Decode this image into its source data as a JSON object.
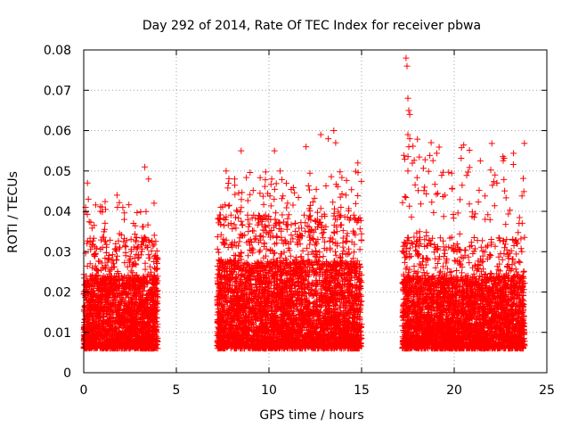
{
  "chart_data": {
    "type": "scatter",
    "title": "Day 292 of 2014, Rate Of TEC Index for receiver pbwa",
    "xlabel": "GPS time / hours",
    "ylabel": "ROTI / TECUs",
    "xlim": [
      0,
      25
    ],
    "ylim": [
      0,
      0.08
    ],
    "xticks": [
      0,
      5,
      10,
      15,
      20,
      25
    ],
    "yticks": [
      0,
      0.01,
      0.02,
      0.03,
      0.04,
      0.05,
      0.06,
      0.07,
      0.08
    ],
    "xtick_labels": [
      "0",
      "5",
      "10",
      "15",
      "20",
      "25"
    ],
    "ytick_labels": [
      "0",
      "0.01",
      "0.02",
      "0.03",
      "0.04",
      "0.05",
      "0.06",
      "0.07",
      "0.08"
    ],
    "grid": true,
    "marker": "+",
    "color": "#ff0000",
    "series": [
      {
        "name": "ROTI",
        "segments": [
          {
            "x_start": 0.0,
            "x_end": 4.0,
            "typical_range": [
              0.006,
              0.03
            ],
            "max": 0.051
          },
          {
            "x_start": 7.2,
            "x_end": 15.0,
            "typical_range": [
              0.006,
              0.035
            ],
            "max": 0.06
          },
          {
            "x_start": 17.2,
            "x_end": 23.8,
            "typical_range": [
              0.006,
              0.03
            ],
            "max": 0.078
          }
        ],
        "points": [
          [
            0.1,
            0.041
          ],
          [
            0.2,
            0.047
          ],
          [
            0.25,
            0.043
          ],
          [
            0.9,
            0.04
          ],
          [
            1.8,
            0.044
          ],
          [
            3.3,
            0.051
          ],
          [
            3.5,
            0.048
          ],
          [
            3.8,
            0.042
          ],
          [
            7.4,
            0.041
          ],
          [
            8.5,
            0.055
          ],
          [
            10.3,
            0.055
          ],
          [
            10.6,
            0.05
          ],
          [
            12.0,
            0.056
          ],
          [
            12.8,
            0.059
          ],
          [
            13.2,
            0.058
          ],
          [
            13.5,
            0.06
          ],
          [
            13.6,
            0.057
          ],
          [
            14.8,
            0.052
          ],
          [
            17.4,
            0.078
          ],
          [
            17.45,
            0.076
          ],
          [
            17.5,
            0.068
          ],
          [
            17.55,
            0.065
          ],
          [
            17.6,
            0.064
          ],
          [
            17.5,
            0.059
          ],
          [
            17.6,
            0.058
          ],
          [
            17.55,
            0.056
          ],
          [
            17.5,
            0.05
          ],
          [
            18.4,
            0.046
          ],
          [
            19.5,
            0.044
          ],
          [
            22.2,
            0.049
          ],
          [
            22.3,
            0.047
          ],
          [
            23.5,
            0.037
          ]
        ]
      }
    ]
  }
}
